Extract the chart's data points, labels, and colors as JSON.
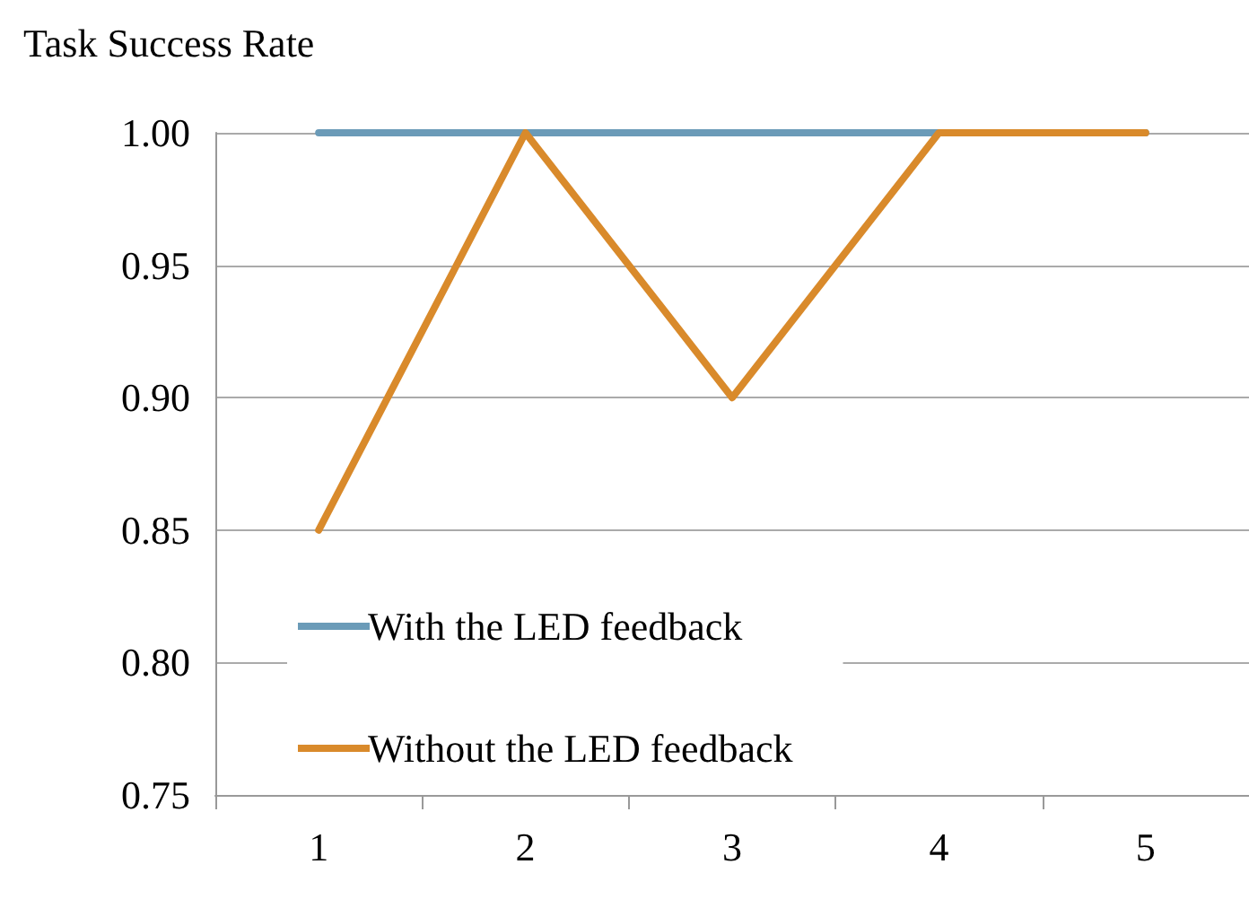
{
  "chart_data": {
    "type": "line",
    "title": "Task Success Rate",
    "categories": [
      "1",
      "2",
      "3",
      "4",
      "5"
    ],
    "series": [
      {
        "name": "With the LED feedback",
        "color": "#6b9bb8",
        "values": [
          1.0,
          1.0,
          1.0,
          1.0,
          1.0
        ]
      },
      {
        "name": "Without the LED feedback",
        "color": "#d98a2b",
        "values": [
          0.85,
          1.0,
          0.9,
          1.0,
          1.0
        ]
      }
    ],
    "ylim": [
      0.75,
      1.0
    ],
    "yticks": [
      0.75,
      {
        "value": 0.8,
        "label": "0.80"
      },
      0.85,
      {
        "value": 0.9,
        "label": "0.90"
      },
      0.95,
      {
        "value": 1.0,
        "label": "1.00"
      }
    ],
    "grid": "y",
    "legend": "bottom left",
    "marker": "none",
    "line_style": "solid"
  }
}
